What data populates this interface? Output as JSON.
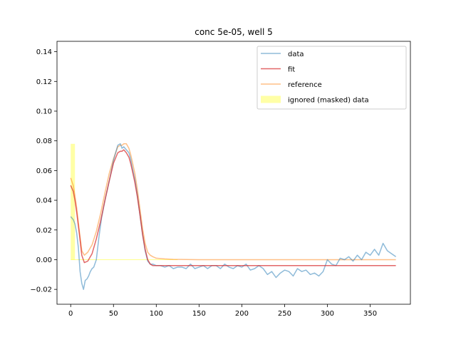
{
  "chart_data": {
    "type": "line",
    "title": "conc 5e-05, well 5",
    "xlabel": "",
    "ylabel": "",
    "xlim": [
      -16,
      397
    ],
    "ylim": [
      -0.03,
      0.147
    ],
    "xticks": [
      0,
      50,
      100,
      150,
      200,
      250,
      300,
      350
    ],
    "yticks": [
      -0.02,
      0.0,
      0.02,
      0.04,
      0.06,
      0.08,
      0.1,
      0.12,
      0.14
    ],
    "ytick_labels": [
      "−0.02",
      "0.00",
      "0.02",
      "0.04",
      "0.06",
      "0.08",
      "0.10",
      "0.12",
      "0.14"
    ],
    "grid": false,
    "legend_position": "top-right",
    "colors": {
      "data": "#1f77b4",
      "fit": "#d62728",
      "reference": "#ff7f0e",
      "mask": "#ffff00"
    },
    "mask": {
      "name": "ignored (masked) data",
      "x": [
        0,
        5
      ],
      "y": [
        0,
        0.078
      ]
    },
    "series": [
      {
        "name": "data",
        "x": [
          0,
          3,
          5,
          7,
          9,
          11,
          13,
          15,
          17,
          19,
          21,
          23,
          25,
          27,
          30,
          33,
          36,
          40,
          45,
          50,
          55,
          58,
          60,
          62,
          65,
          68,
          70,
          72,
          75,
          78,
          81,
          84,
          87,
          90,
          93,
          96,
          100,
          105,
          110,
          115,
          120,
          125,
          130,
          135,
          140,
          145,
          150,
          155,
          160,
          165,
          170,
          175,
          180,
          185,
          190,
          195,
          200,
          205,
          210,
          215,
          220,
          225,
          230,
          235,
          240,
          245,
          250,
          255,
          260,
          265,
          270,
          275,
          280,
          285,
          290,
          295,
          300,
          305,
          310,
          315,
          320,
          325,
          330,
          335,
          340,
          345,
          350,
          355,
          360,
          365,
          370,
          375,
          380
        ],
        "y": [
          0.029,
          0.027,
          0.024,
          0.018,
          0.008,
          -0.008,
          -0.016,
          -0.02,
          -0.014,
          -0.013,
          -0.011,
          -0.008,
          -0.006,
          -0.005,
          0.0,
          0.015,
          0.028,
          0.04,
          0.053,
          0.067,
          0.077,
          0.078,
          0.075,
          0.076,
          0.074,
          0.072,
          0.068,
          0.062,
          0.054,
          0.043,
          0.03,
          0.017,
          0.006,
          -0.001,
          -0.003,
          -0.003,
          -0.004,
          -0.004,
          -0.005,
          -0.004,
          -0.006,
          -0.005,
          -0.005,
          -0.006,
          -0.003,
          -0.006,
          -0.005,
          -0.004,
          -0.006,
          -0.004,
          -0.004,
          -0.006,
          -0.003,
          -0.005,
          -0.006,
          -0.004,
          -0.005,
          -0.003,
          -0.007,
          -0.006,
          -0.004,
          -0.006,
          -0.01,
          -0.008,
          -0.012,
          -0.009,
          -0.007,
          -0.008,
          -0.011,
          -0.006,
          -0.008,
          -0.007,
          -0.01,
          -0.009,
          -0.011,
          -0.008,
          0.0,
          -0.003,
          -0.004,
          0.001,
          0.0,
          0.002,
          -0.001,
          0.003,
          0.0,
          0.005,
          0.003,
          0.007,
          0.003,
          0.011,
          0.006,
          0.004,
          0.002
        ]
      },
      {
        "name": "fit",
        "x": [
          0,
          3,
          5,
          7,
          10,
          13,
          16,
          20,
          25,
          30,
          35,
          40,
          45,
          50,
          55,
          58,
          60,
          62,
          65,
          68,
          70,
          72,
          75,
          78,
          81,
          84,
          87,
          90,
          93,
          96,
          100,
          110,
          120,
          150,
          200,
          250,
          300,
          350,
          380
        ],
        "y": [
          0.05,
          0.046,
          0.04,
          0.032,
          0.018,
          0.003,
          -0.002,
          -0.001,
          0.004,
          0.014,
          0.026,
          0.04,
          0.053,
          0.065,
          0.072,
          0.073,
          0.073,
          0.074,
          0.072,
          0.069,
          0.065,
          0.06,
          0.052,
          0.042,
          0.03,
          0.017,
          0.007,
          0.0,
          -0.003,
          -0.004,
          -0.004,
          -0.004,
          -0.004,
          -0.004,
          -0.004,
          -0.004,
          -0.004,
          -0.004,
          -0.004
        ]
      },
      {
        "name": "reference",
        "x": [
          0,
          3,
          5,
          7,
          10,
          13,
          16,
          20,
          25,
          30,
          35,
          40,
          45,
          50,
          55,
          58,
          60,
          62,
          65,
          68,
          70,
          72,
          75,
          78,
          81,
          84,
          87,
          90,
          93,
          96,
          100,
          110,
          120,
          150,
          200,
          250,
          300,
          350,
          380
        ],
        "y": [
          0.055,
          0.05,
          0.043,
          0.035,
          0.02,
          0.006,
          0.003,
          0.005,
          0.01,
          0.019,
          0.031,
          0.045,
          0.058,
          0.068,
          0.076,
          0.077,
          0.077,
          0.078,
          0.078,
          0.075,
          0.071,
          0.066,
          0.058,
          0.047,
          0.034,
          0.021,
          0.011,
          0.005,
          0.003,
          0.002,
          0.001,
          0.0005,
          0.0002,
          0.0,
          0.0,
          0.0,
          0.0,
          0.0,
          0.0
        ]
      }
    ]
  }
}
